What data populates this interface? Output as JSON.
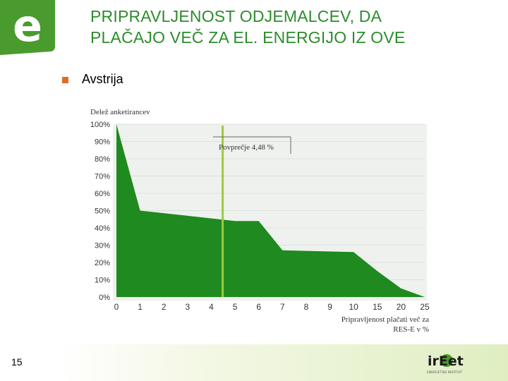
{
  "slide": {
    "title_line1": "PRIPRAVLJENOST ODJEMALCEV, DA",
    "title_line2": "PLAČAJO VEČ ZA EL. ENERGIJO IZ OVE",
    "bullet": "Avstrija",
    "page_number": "15",
    "logo_letter": "e",
    "brand": {
      "name": "irEet",
      "tagline": "ENERGETSKI INSTITUT"
    },
    "colors": {
      "title": "#2c8c2c",
      "bullet": "#e06a2a",
      "area": "#1f8a1f",
      "average": "#9ccc3c"
    }
  },
  "chart_data": {
    "type": "area",
    "ylabel": "Delež anketirancev",
    "xlabel_line1": "Pripravljenost plačati več za",
    "xlabel_line2": "RES-E v %",
    "average_label": "Povprečje 4,48 %",
    "average_x": 4.48,
    "x_ticks": [
      "0",
      "1",
      "2",
      "3",
      "4",
      "5",
      "6",
      "7",
      "8",
      "9",
      "10",
      "15",
      "20",
      "25"
    ],
    "y_ticks": [
      "100%",
      "90%",
      "80%",
      "70%",
      "60%",
      "50%",
      "40%",
      "30%",
      "20%",
      "10%",
      "0%"
    ],
    "ylim": [
      0,
      100
    ],
    "x": [
      0,
      1,
      5,
      6,
      7,
      10,
      15,
      20,
      25
    ],
    "values": [
      100,
      50,
      44,
      44,
      27,
      26,
      15,
      5,
      0
    ]
  }
}
